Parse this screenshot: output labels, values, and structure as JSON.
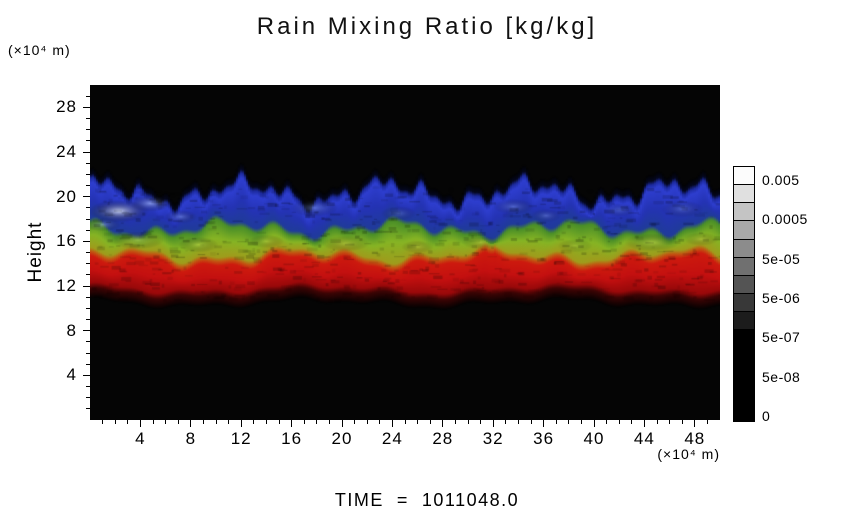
{
  "figure": {
    "background": "#ffffff"
  },
  "chart_data": {
    "type": "heatmap",
    "title": "Rain Mixing Ratio [kg/kg]",
    "ylabel": "Height",
    "ylabel_unit": "(×10⁴ m)",
    "xlabel_unit": "(×10⁴ m)",
    "time_label": "TIME  =  1011048.0",
    "xlim": [
      0,
      50
    ],
    "ylim": [
      0,
      30
    ],
    "xticks": [
      4,
      8,
      12,
      16,
      20,
      24,
      28,
      32,
      36,
      40,
      44,
      48
    ],
    "yticks": [
      28,
      24,
      20,
      16,
      12,
      8,
      4
    ],
    "x_minor_tick_step": 1,
    "y_minor_tick_step": 1,
    "grid": false,
    "plot_background": "#050505",
    "legend_position": "right-colorbar",
    "bands": [
      {
        "name": "upper-band",
        "color_label": "blue",
        "color": "#2e3ecf",
        "top_height_e4m": 20.2,
        "bottom_height_e4m": 16.9,
        "note": "wavy turbulent blue band with pale blue-white patches, brightest near left edge"
      },
      {
        "name": "middle-band",
        "color_label": "yellow-green",
        "color": "#6fae22",
        "top_height_e4m": 16.9,
        "bottom_height_e4m": 14.5,
        "note": "wavy yellow-green band"
      },
      {
        "name": "lower-band",
        "color_label": "red",
        "color": "#cc1410",
        "top_height_e4m": 14.5,
        "bottom_height_e4m": 11.3,
        "note": "red band with relatively flat lower edge"
      }
    ],
    "colorbar": {
      "segments": 14,
      "top_color": "#fcfcfc",
      "bottom_color": "#000000",
      "tick_labels": [
        "0.005",
        "0.0005",
        "5e-05",
        "5e-06",
        "5e-07",
        "5e-08",
        "0"
      ]
    }
  }
}
